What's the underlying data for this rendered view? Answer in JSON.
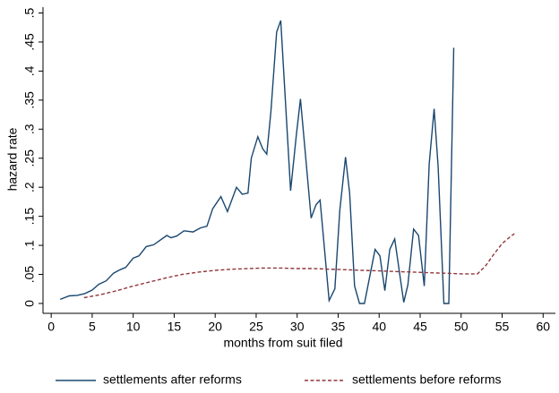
{
  "chart_data": {
    "type": "line",
    "x_label": "months from suit filed",
    "y_label": "hazard rate",
    "xlim": [
      -1,
      61.5
    ],
    "ylim": [
      -0.017,
      0.51
    ],
    "xticks": [
      0,
      5,
      10,
      15,
      20,
      25,
      30,
      35,
      40,
      45,
      50,
      55,
      60
    ],
    "yticks": [
      0,
      {
        "value": 0.05,
        "label": ".05"
      },
      {
        "value": 0.1,
        "label": ".1"
      },
      {
        "value": 0.15,
        "label": ".15"
      },
      {
        "value": 0.2,
        "label": ".2"
      },
      {
        "value": 0.25,
        "label": ".25"
      },
      {
        "value": 0.3,
        "label": ".3"
      },
      {
        "value": 0.35,
        "label": ".35"
      },
      {
        "value": 0.4,
        "label": ".4"
      },
      {
        "value": 0.45,
        "label": ".45"
      },
      {
        "value": 0.5,
        "label": ".5"
      }
    ],
    "grid": false,
    "legend": "bottom",
    "series": [
      {
        "name": "settlements after reforms",
        "color": "#1a476f",
        "dash": "solid",
        "x": [
          1.1,
          2.2,
          3.2,
          4.1,
          5.0,
          5.8,
          6.7,
          7.6,
          8.4,
          9.1,
          10.0,
          10.7,
          11.6,
          12.5,
          14.1,
          14.6,
          15.3,
          16.2,
          17.3,
          18.2,
          19.0,
          19.7,
          20.7,
          21.5,
          22.6,
          23.3,
          24.0,
          24.4,
          25.2,
          25.8,
          26.3,
          26.8,
          27.5,
          28.0,
          29.2,
          29.9,
          30.4,
          31.7,
          32.3,
          32.8,
          33.9,
          34.6,
          35.2,
          35.9,
          36.4,
          37.0,
          37.6,
          38.2,
          39.5,
          40.1,
          40.7,
          41.3,
          41.9,
          43.0,
          43.5,
          44.2,
          44.8,
          45.5,
          46.1,
          46.7,
          47.2,
          47.9,
          48.5,
          49.1
        ],
        "values": [
          0.007,
          0.013,
          0.014,
          0.017,
          0.023,
          0.033,
          0.039,
          0.052,
          0.058,
          0.062,
          0.078,
          0.082,
          0.098,
          0.101,
          0.117,
          0.113,
          0.116,
          0.125,
          0.123,
          0.13,
          0.133,
          0.163,
          0.184,
          0.158,
          0.2,
          0.188,
          0.19,
          0.25,
          0.287,
          0.266,
          0.257,
          0.33,
          0.467,
          0.487,
          0.194,
          0.29,
          0.352,
          0.147,
          0.17,
          0.178,
          0.005,
          0.025,
          0.16,
          0.252,
          0.19,
          0.03,
          0.0,
          0.0,
          0.093,
          0.082,
          0.022,
          0.093,
          0.111,
          0.002,
          0.032,
          0.128,
          0.117,
          0.03,
          0.24,
          0.335,
          0.235,
          0.0,
          0.0,
          0.44
        ]
      },
      {
        "name": "settlements before reforms",
        "color": "#90353b",
        "dash": "dashed",
        "x": [
          4,
          6,
          8,
          10,
          12,
          14,
          16,
          18,
          20,
          22,
          24,
          26,
          28,
          30,
          32,
          34,
          36,
          38,
          40,
          42,
          44,
          46,
          48,
          50,
          52,
          53,
          54,
          55,
          56,
          56.5
        ],
        "values": [
          0.01,
          0.015,
          0.022,
          0.03,
          0.037,
          0.044,
          0.05,
          0.054,
          0.057,
          0.059,
          0.06,
          0.061,
          0.061,
          0.06,
          0.06,
          0.059,
          0.058,
          0.057,
          0.056,
          0.055,
          0.054,
          0.053,
          0.052,
          0.051,
          0.051,
          0.065,
          0.085,
          0.103,
          0.115,
          0.12
        ]
      }
    ]
  }
}
